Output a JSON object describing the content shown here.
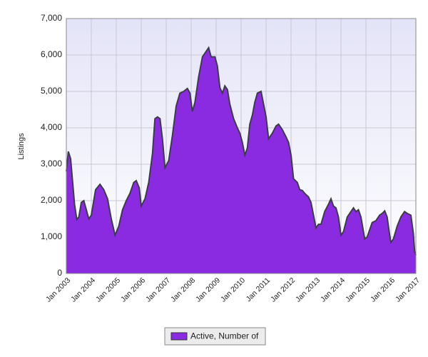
{
  "chart_data": {
    "type": "area",
    "y_label": "Listings",
    "x": [
      2003.0,
      2003.08,
      2003.17,
      2003.33,
      2003.42,
      2003.5,
      2003.6,
      2003.7,
      2003.8,
      2003.9,
      2004.0,
      2004.17,
      2004.35,
      2004.5,
      2004.65,
      2004.8,
      2004.95,
      2005.1,
      2005.25,
      2005.4,
      2005.55,
      2005.7,
      2005.8,
      2005.92,
      2006.0,
      2006.15,
      2006.3,
      2006.45,
      2006.55,
      2006.65,
      2006.75,
      2006.85,
      2006.95,
      2007.1,
      2007.25,
      2007.4,
      2007.55,
      2007.7,
      2007.85,
      2007.95,
      2008.05,
      2008.15,
      2008.3,
      2008.45,
      2008.6,
      2008.7,
      2008.8,
      2008.95,
      2009.05,
      2009.15,
      2009.25,
      2009.35,
      2009.45,
      2009.55,
      2009.7,
      2009.85,
      2009.95,
      2010.05,
      2010.15,
      2010.25,
      2010.35,
      2010.45,
      2010.55,
      2010.65,
      2010.8,
      2010.9,
      2011.0,
      2011.1,
      2011.25,
      2011.4,
      2011.5,
      2011.65,
      2011.8,
      2011.9,
      2012.0,
      2012.1,
      2012.25,
      2012.35,
      2012.45,
      2012.55,
      2012.7,
      2012.8,
      2012.9,
      2013.0,
      2013.1,
      2013.2,
      2013.35,
      2013.5,
      2013.6,
      2013.7,
      2013.8,
      2013.9,
      2014.0,
      2014.1,
      2014.25,
      2014.4,
      2014.5,
      2014.6,
      2014.7,
      2014.8,
      2014.95,
      2015.05,
      2015.25,
      2015.4,
      2015.55,
      2015.65,
      2015.75,
      2015.85,
      2015.95,
      2016.0,
      2016.1,
      2016.25,
      2016.4,
      2016.55,
      2016.65,
      2016.8,
      2016.9,
      2016.95,
      2017.0
    ],
    "series": [
      {
        "name": "Active, Number of",
        "color": "#8a2be2",
        "values": [
          2800,
          3350,
          3150,
          1900,
          1480,
          1550,
          1950,
          2000,
          1750,
          1500,
          1600,
          2300,
          2450,
          2300,
          2050,
          1500,
          1050,
          1300,
          1750,
          2000,
          2200,
          2500,
          2550,
          2350,
          1850,
          2050,
          2500,
          3300,
          4250,
          4300,
          4250,
          3700,
          2900,
          3100,
          3800,
          4600,
          4950,
          5000,
          5080,
          4950,
          4450,
          4700,
          5400,
          5950,
          6100,
          6200,
          5950,
          5950,
          5700,
          5100,
          4950,
          5150,
          5050,
          4650,
          4250,
          4000,
          3850,
          3600,
          3250,
          3450,
          4100,
          4350,
          4700,
          4950,
          5000,
          4650,
          4300,
          3700,
          3850,
          4050,
          4100,
          3950,
          3750,
          3600,
          3250,
          2600,
          2500,
          2300,
          2280,
          2200,
          2100,
          1950,
          1600,
          1250,
          1350,
          1350,
          1700,
          1900,
          2050,
          1850,
          1800,
          1550,
          1050,
          1150,
          1550,
          1700,
          1800,
          1700,
          1750,
          1550,
          950,
          1000,
          1400,
          1450,
          1600,
          1650,
          1720,
          1550,
          1050,
          850,
          950,
          1300,
          1550,
          1700,
          1650,
          1600,
          1100,
          600,
          500
        ]
      }
    ],
    "xlim": [
      2003,
      2017
    ],
    "xticks": [
      {
        "value": 2003,
        "label": "Jan 2003"
      },
      {
        "value": 2004,
        "label": "Jan 2004"
      },
      {
        "value": 2005,
        "label": "Jan 2005"
      },
      {
        "value": 2006,
        "label": "Jan 2006"
      },
      {
        "value": 2007,
        "label": "Jan 2007"
      },
      {
        "value": 2008,
        "label": "Jan 2008"
      },
      {
        "value": 2009,
        "label": "Jan 2009"
      },
      {
        "value": 2010,
        "label": "Jan 2010"
      },
      {
        "value": 2011,
        "label": "Jan 2011"
      },
      {
        "value": 2012,
        "label": "Jan 2012"
      },
      {
        "value": 2013,
        "label": "Jan 2013"
      },
      {
        "value": 2014,
        "label": "Jan 2014"
      },
      {
        "value": 2015,
        "label": "Jan 2015"
      },
      {
        "value": 2016,
        "label": "Jan 2016"
      },
      {
        "value": 2017,
        "label": "Jan 2017"
      }
    ],
    "ylim": [
      0,
      7000
    ],
    "yticks": [
      0,
      {
        "value": 1000,
        "label": "1,000"
      },
      {
        "value": 2000,
        "label": "2,000"
      },
      {
        "value": 3000,
        "label": "3,000"
      },
      {
        "value": 4000,
        "label": "4,000"
      },
      {
        "value": 5000,
        "label": "5,000"
      },
      {
        "value": 6000,
        "label": "6,000"
      },
      {
        "value": 7000,
        "label": "7,000"
      }
    ],
    "grid": true
  }
}
